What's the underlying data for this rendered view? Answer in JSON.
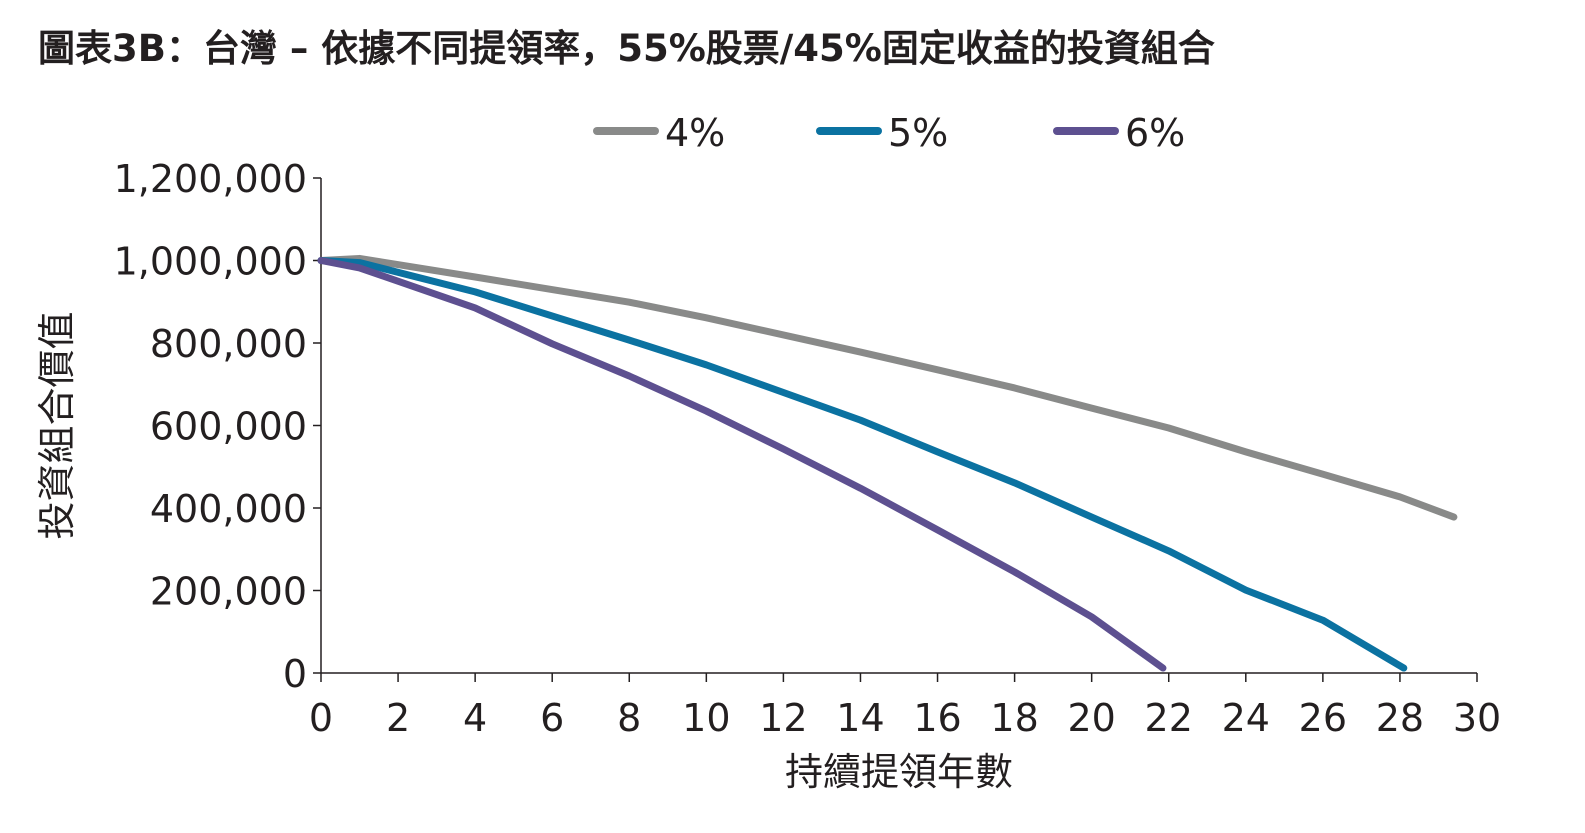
{
  "chart_data": {
    "type": "line",
    "title": "圖表3B：台灣 – 依據不同提領率，55%股票/45%固定收益的投資組合",
    "xlabel": "持續提領年數",
    "ylabel": "投資組合價值",
    "xlim": [
      0,
      30
    ],
    "ylim": [
      0,
      1200000
    ],
    "xticks": [
      0,
      2,
      4,
      6,
      8,
      10,
      12,
      14,
      16,
      18,
      20,
      22,
      24,
      26,
      28,
      30
    ],
    "yticks": [
      0,
      200000,
      400000,
      600000,
      800000,
      1000000,
      1200000
    ],
    "ytick_labels": [
      "0",
      "200,000",
      "400,000",
      "600,000",
      "800,000",
      "1,000,000",
      "1,200,000"
    ],
    "grid": false,
    "legend_position": "top",
    "series": [
      {
        "name": "4%",
        "color": "#898a89",
        "x": [
          0,
          1,
          4,
          8,
          10,
          14,
          16,
          18,
          20,
          22,
          24,
          26,
          28,
          29.4
        ],
        "y": [
          1000000,
          1005000,
          960000,
          899000,
          861000,
          778000,
          735000,
          691000,
          642000,
          594000,
          536000,
          482000,
          427000,
          378000
        ]
      },
      {
        "name": "5%",
        "color": "#0b72a1",
        "x": [
          0,
          1,
          4,
          8,
          10,
          14,
          16,
          18,
          20,
          22,
          24,
          26,
          28.1
        ],
        "y": [
          1000000,
          995000,
          924000,
          807000,
          747000,
          613000,
          536000,
          461000,
          378000,
          296000,
          201000,
          128000,
          12000
        ]
      },
      {
        "name": "6%",
        "color": "#5d5090",
        "x": [
          0,
          1,
          4,
          6,
          8,
          10,
          12,
          14,
          16,
          18,
          20,
          21.85
        ],
        "y": [
          1000000,
          982000,
          885000,
          798000,
          720000,
          635000,
          543000,
          448000,
          347000,
          245000,
          136000,
          12000
        ]
      }
    ]
  }
}
